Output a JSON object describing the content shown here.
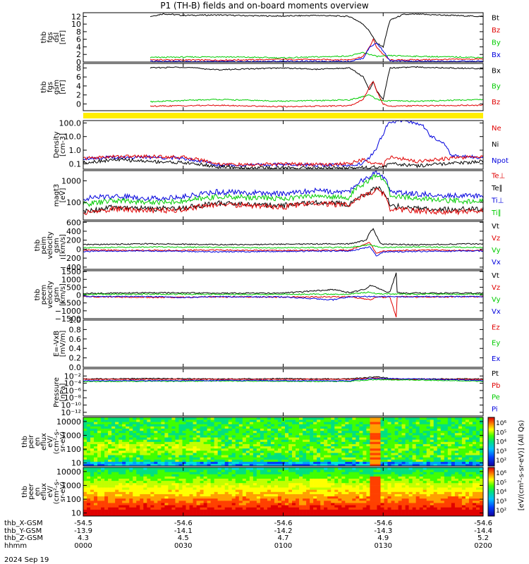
{
  "title": "P1 (TH-B) fields and on-board moments overview",
  "date": "2024 Sep 19",
  "colors": {
    "black": "#000000",
    "red": "#e00000",
    "green": "#00cc00",
    "blue": "#0000dd",
    "yellow": "#ffee00"
  },
  "chart_data": [
    {
      "type": "line",
      "id": "p1",
      "ylabel": [
        "thb",
        "fgs",
        "dsl",
        "[nT]"
      ],
      "yticks": [
        "0",
        "2",
        "4",
        "6",
        "8",
        "10",
        "12"
      ],
      "ylim": [
        0,
        13
      ],
      "scale": "linear",
      "legend": [
        "Bt",
        "Bz",
        "By",
        "Bx"
      ],
      "series": [
        {
          "name": "Bt",
          "color": "black",
          "x": [
            20,
            24,
            30,
            40,
            50,
            60,
            70,
            80,
            84,
            86,
            88,
            90,
            92,
            96,
            100,
            110,
            120
          ],
          "y": [
            12,
            12.7,
            12.3,
            12.4,
            12.2,
            12.1,
            12.3,
            12,
            10,
            8,
            5,
            4,
            11,
            12.5,
            12.6,
            12.3,
            12
          ]
        },
        {
          "name": "Bz",
          "color": "red",
          "x": [
            20,
            40,
            60,
            80,
            84,
            86,
            87,
            88,
            90,
            92,
            100,
            120
          ],
          "y": [
            0.6,
            0.5,
            0.7,
            0.6,
            1.5,
            4,
            6,
            4,
            2,
            0.5,
            0.6,
            0.8
          ]
        },
        {
          "name": "By",
          "color": "green",
          "x": [
            20,
            40,
            60,
            80,
            84,
            86,
            88,
            90,
            92,
            100,
            120
          ],
          "y": [
            1.2,
            1.4,
            1.1,
            1.6,
            2.5,
            2,
            1.5,
            1.5,
            1.7,
            1.5,
            1.2
          ]
        },
        {
          "name": "Bx",
          "color": "blue",
          "x": [
            20,
            40,
            60,
            80,
            84,
            86,
            88,
            90,
            92,
            100,
            120
          ],
          "y": [
            0.2,
            0.1,
            0.2,
            0.2,
            1,
            4,
            5,
            3,
            0.3,
            0.2,
            0.2
          ]
        }
      ]
    },
    {
      "type": "line",
      "id": "p2",
      "ylabel": [
        "thb",
        "fgs",
        "gsm",
        "[nT]"
      ],
      "yticks": [
        "0",
        "2",
        "4",
        "6",
        "8"
      ],
      "ylim": [
        -1.5,
        9
      ],
      "scale": "linear",
      "legend": [
        "Bx",
        "By",
        "Bz"
      ],
      "series": [
        {
          "name": "Bx",
          "color": "black",
          "x": [
            20,
            30,
            40,
            50,
            60,
            70,
            80,
            84,
            86,
            87,
            88,
            90,
            92,
            100,
            120
          ],
          "y": [
            8,
            8.2,
            7.6,
            7.8,
            8,
            7.7,
            8,
            6,
            3,
            5,
            3,
            1,
            8,
            8.2,
            7.8
          ]
        },
        {
          "name": "By",
          "color": "green",
          "x": [
            20,
            40,
            60,
            80,
            86,
            88,
            90,
            100,
            120
          ],
          "y": [
            0.5,
            1,
            0.6,
            0.9,
            2,
            1,
            0.7,
            0.6,
            1
          ]
        },
        {
          "name": "Bz",
          "color": "red",
          "x": [
            20,
            40,
            60,
            80,
            84,
            86,
            87,
            88,
            90,
            92,
            100,
            120
          ],
          "y": [
            -0.5,
            -0.3,
            -0.6,
            -0.4,
            1,
            4,
            5,
            3,
            0,
            -0.5,
            -0.4,
            -0.3
          ]
        }
      ]
    },
    {
      "type": "line",
      "id": "p3",
      "ylabel": [
        "Density",
        "[cm-3]"
      ],
      "yticks": [
        "0.1",
        "1.0",
        "10.0",
        "100.0"
      ],
      "yvals": [
        0.1,
        1,
        10,
        100
      ],
      "ylim": [
        0.04,
        150
      ],
      "scale": "log",
      "legend": [
        "Ne",
        "Ni",
        "Npot"
      ],
      "series": [
        {
          "name": "Npot",
          "color": "blue",
          "x": [
            0,
            10,
            20,
            30,
            40,
            50,
            60,
            70,
            80,
            84,
            86,
            88,
            90,
            92,
            96,
            100,
            104,
            110,
            120
          ],
          "y": [
            0.25,
            0.3,
            0.3,
            0.25,
            0.08,
            0.08,
            0.09,
            0.08,
            0.08,
            0.1,
            0.3,
            1,
            10,
            100,
            150,
            100,
            10,
            0.4,
            0.3
          ]
        },
        {
          "name": "Ne",
          "color": "red",
          "x": [
            0,
            10,
            20,
            30,
            40,
            50,
            60,
            70,
            80,
            84,
            86,
            88,
            90,
            92,
            100,
            110,
            120
          ],
          "y": [
            0.25,
            0.35,
            0.35,
            0.3,
            0.1,
            0.08,
            0.1,
            0.09,
            0.1,
            0.2,
            0.1,
            0.15,
            0.06,
            0.3,
            0.15,
            0.25,
            0.35
          ]
        },
        {
          "name": "Ni",
          "color": "black",
          "x": [
            0,
            10,
            20,
            30,
            40,
            50,
            60,
            70,
            80,
            84,
            86,
            88,
            90,
            92,
            100,
            110,
            120
          ],
          "y": [
            0.12,
            0.2,
            0.15,
            0.12,
            0.06,
            0.05,
            0.05,
            0.05,
            0.05,
            0.06,
            0.05,
            0.06,
            0.05,
            0.1,
            0.07,
            0.1,
            0.15
          ]
        }
      ]
    },
    {
      "type": "line",
      "id": "p4",
      "ylabel": [
        "magt3",
        "[eV]"
      ],
      "yticks": [
        "100",
        "1000"
      ],
      "yvals": [
        100,
        1000
      ],
      "ylim": [
        15,
        3000
      ],
      "scale": "log",
      "legend": [
        "Te⊥",
        "Te∥",
        "Ti⊥",
        "Ti∥"
      ],
      "series": [
        {
          "name": "Ti⊥",
          "color": "blue",
          "x": [
            0,
            10,
            20,
            30,
            40,
            50,
            60,
            70,
            80,
            86,
            88,
            90,
            92,
            100,
            110,
            120
          ],
          "y": [
            150,
            200,
            150,
            180,
            300,
            280,
            250,
            350,
            300,
            1500,
            2500,
            1500,
            300,
            250,
            200,
            200
          ]
        },
        {
          "name": "Ti∥",
          "color": "green",
          "x": [
            0,
            10,
            20,
            30,
            40,
            50,
            60,
            70,
            80,
            86,
            88,
            90,
            92,
            100,
            110,
            120
          ],
          "y": [
            80,
            120,
            100,
            110,
            180,
            170,
            150,
            200,
            160,
            1000,
            1800,
            1200,
            200,
            150,
            120,
            110
          ]
        },
        {
          "name": "Te∥",
          "color": "black",
          "x": [
            0,
            10,
            20,
            30,
            40,
            50,
            60,
            70,
            80,
            86,
            88,
            90,
            92,
            100,
            110,
            120
          ],
          "y": [
            35,
            60,
            50,
            55,
            90,
            80,
            70,
            100,
            80,
            300,
            500,
            300,
            70,
            50,
            45,
            50
          ]
        },
        {
          "name": "Te⊥",
          "color": "red",
          "x": [
            0,
            10,
            20,
            30,
            40,
            50,
            60,
            70,
            80,
            86,
            88,
            90,
            92,
            100,
            110,
            120
          ],
          "y": [
            30,
            50,
            40,
            45,
            80,
            70,
            60,
            90,
            70,
            250,
            400,
            250,
            50,
            40,
            35,
            40
          ]
        }
      ]
    },
    {
      "type": "line",
      "id": "p5",
      "ylabel": [
        "thb",
        "peim",
        "velocity",
        "gsm",
        "[km/s]"
      ],
      "yticks": [
        "−400",
        "−200",
        "0",
        "200",
        "400",
        "600"
      ],
      "ylim": [
        -450,
        620
      ],
      "scale": "linear",
      "legend": [
        "Vt",
        "Vz",
        "Vy",
        "Vx"
      ],
      "series": [
        {
          "name": "Vt",
          "color": "black",
          "x": [
            0,
            20,
            40,
            60,
            80,
            85,
            86,
            87,
            88,
            89,
            90,
            100,
            120
          ],
          "y": [
            100,
            120,
            100,
            110,
            120,
            200,
            380,
            460,
            300,
            150,
            110,
            100,
            120
          ]
        },
        {
          "name": "Vz",
          "color": "red",
          "x": [
            0,
            20,
            40,
            60,
            80,
            86,
            88,
            90,
            100,
            120
          ],
          "y": [
            -20,
            -30,
            -20,
            -30,
            -20,
            150,
            -100,
            -40,
            -20,
            -30
          ]
        },
        {
          "name": "Vy",
          "color": "green",
          "x": [
            0,
            20,
            40,
            60,
            80,
            86,
            88,
            90,
            100,
            120
          ],
          "y": [
            30,
            50,
            40,
            30,
            40,
            100,
            60,
            40,
            50,
            40
          ]
        },
        {
          "name": "Vx",
          "color": "blue",
          "x": [
            0,
            20,
            40,
            60,
            80,
            86,
            88,
            90,
            100,
            120
          ],
          "y": [
            -50,
            -40,
            -60,
            -50,
            -40,
            50,
            -150,
            -60,
            -50,
            -40
          ]
        }
      ]
    },
    {
      "type": "line",
      "id": "p6",
      "ylabel": [
        "thb",
        "peem",
        "velocity",
        "gsm",
        "[km/s]"
      ],
      "yticks": [
        "−1500",
        "−1000",
        "−500",
        "0",
        "500",
        "1000",
        "1500"
      ],
      "ylim": [
        -1500,
        1550
      ],
      "scale": "linear",
      "legend": [
        "Vt",
        "Vz",
        "Vy",
        "Vx"
      ],
      "series": [
        {
          "name": "Vt",
          "color": "black",
          "x": [
            0,
            20,
            40,
            60,
            75,
            80,
            85,
            86,
            88,
            90,
            92,
            94,
            94.2,
            96,
            100,
            120
          ],
          "y": [
            100,
            150,
            120,
            130,
            350,
            150,
            400,
            600,
            500,
            300,
            150,
            1500,
            150,
            120,
            130,
            120
          ]
        },
        {
          "name": "Vz",
          "color": "red",
          "x": [
            0,
            20,
            40,
            60,
            80,
            86,
            88,
            90,
            92,
            94,
            94.2,
            96,
            100,
            120
          ],
          "y": [
            -100,
            -150,
            -120,
            -130,
            -100,
            -300,
            -100,
            -150,
            -100,
            -1500,
            -100,
            -100,
            -120,
            -100
          ]
        },
        {
          "name": "Vy",
          "color": "green",
          "x": [
            0,
            20,
            40,
            60,
            80,
            86,
            88,
            100,
            120
          ],
          "y": [
            50,
            60,
            40,
            50,
            60,
            200,
            80,
            60,
            50
          ]
        },
        {
          "name": "Vx",
          "color": "blue",
          "x": [
            0,
            20,
            30,
            40,
            60,
            75,
            80,
            100,
            120
          ],
          "y": [
            -80,
            -100,
            -150,
            -100,
            -120,
            -300,
            -100,
            -90,
            -100
          ]
        }
      ]
    },
    {
      "type": "line",
      "id": "p7",
      "ylabel": [
        "E=-VxB",
        "[mV/m]"
      ],
      "yticks": [
        "0.0",
        "0.2",
        "0.4",
        "0.6",
        "0.8",
        "1.0"
      ],
      "ylim": [
        0,
        1.0
      ],
      "scale": "linear",
      "legend": [
        "Ez",
        "Ey",
        "Ex"
      ],
      "series": []
    },
    {
      "type": "line",
      "id": "p8",
      "ylabel": [
        "Pressure",
        "[nPa]"
      ],
      "yticks": [
        "10⁻¹²",
        "10⁻¹⁰",
        "10⁻⁸",
        "10⁻⁶",
        "10⁻⁴",
        "10⁻²"
      ],
      "yvals": [
        1e-12,
        1e-10,
        1e-08,
        1e-06,
        0.0001,
        0.01
      ],
      "ylim": [
        1e-13,
        1
      ],
      "scale": "log",
      "legend": [
        "Pt",
        "Pb",
        "Pe",
        "Pi"
      ],
      "series": [
        {
          "name": "Pt",
          "color": "black",
          "x": [
            0,
            20,
            40,
            60,
            80,
            86,
            88,
            90,
            92,
            120
          ],
          "y": [
            0.0015,
            0.002,
            0.0015,
            0.0018,
            0.0016,
            0.004,
            0.006,
            0.004,
            0.0015,
            0.0016
          ]
        },
        {
          "name": "Pb",
          "color": "red",
          "x": [
            0,
            40,
            80,
            86,
            88,
            90,
            120
          ],
          "y": [
            0.0012,
            0.0012,
            0.0012,
            0.002,
            0.003,
            0.0012,
            0.0012
          ]
        },
        {
          "name": "Pe",
          "color": "green",
          "x": [
            0,
            40,
            80,
            88,
            120
          ],
          "y": [
            0.0003,
            0.0004,
            0.0003,
            0.001,
            0.0003
          ]
        },
        {
          "name": "Pi",
          "color": "blue",
          "x": [
            0,
            40,
            80,
            88,
            120
          ],
          "y": [
            0.0005,
            0.0006,
            0.0005,
            0.002,
            0.0005
          ]
        }
      ]
    },
    {
      "type": "heatmap",
      "id": "p9",
      "ylabel": [
        "thb",
        "peir",
        "en",
        "eflux",
        "eV/",
        "(cm²-s-",
        "sr-eV)"
      ],
      "yticks": [
        "10",
        "100",
        "1000",
        "10000"
      ],
      "yvals": [
        10,
        100,
        1000,
        10000
      ],
      "ylim": [
        6,
        20000
      ],
      "scale": "log",
      "zlabel": "[eV/(cm²-s-sr-eV)] (All Qs)",
      "zticks": [
        "10²",
        "10³",
        "10⁴",
        "10⁵",
        "10⁶"
      ]
    },
    {
      "type": "heatmap",
      "id": "p10",
      "ylabel": [
        "thb",
        "peer",
        "en",
        "eflux",
        "eV/",
        "(cm²-s-",
        "sr-eV)"
      ],
      "yticks": [
        "10",
        "100",
        "1000",
        "10000"
      ],
      "yvals": [
        10,
        100,
        1000,
        10000
      ],
      "ylim": [
        6,
        20000
      ],
      "scale": "log",
      "zticks": [
        "10²",
        "10³",
        "10⁴",
        "10⁵",
        "10⁶"
      ]
    }
  ],
  "time_axis": {
    "xlim": [
      0,
      120
    ],
    "ticks": [
      0,
      30,
      60,
      90,
      120
    ]
  },
  "ephemeris": [
    {
      "label": "thb_X-GSM",
      "values": [
        "-54.5",
        "-54.6",
        "-54.6",
        "-54.6",
        "-54.6"
      ]
    },
    {
      "label": "thb_Y-GSM",
      "values": [
        "-13.9",
        "-14.1",
        "-14.2",
        "-14.3",
        "-14.4"
      ]
    },
    {
      "label": "thb_Z-GSM",
      "values": [
        "4.3",
        "4.5",
        "4.7",
        "4.9",
        "5.2"
      ]
    },
    {
      "label": "hhmm",
      "values": [
        "0000",
        "0030",
        "0100",
        "0130",
        "0200"
      ]
    }
  ]
}
